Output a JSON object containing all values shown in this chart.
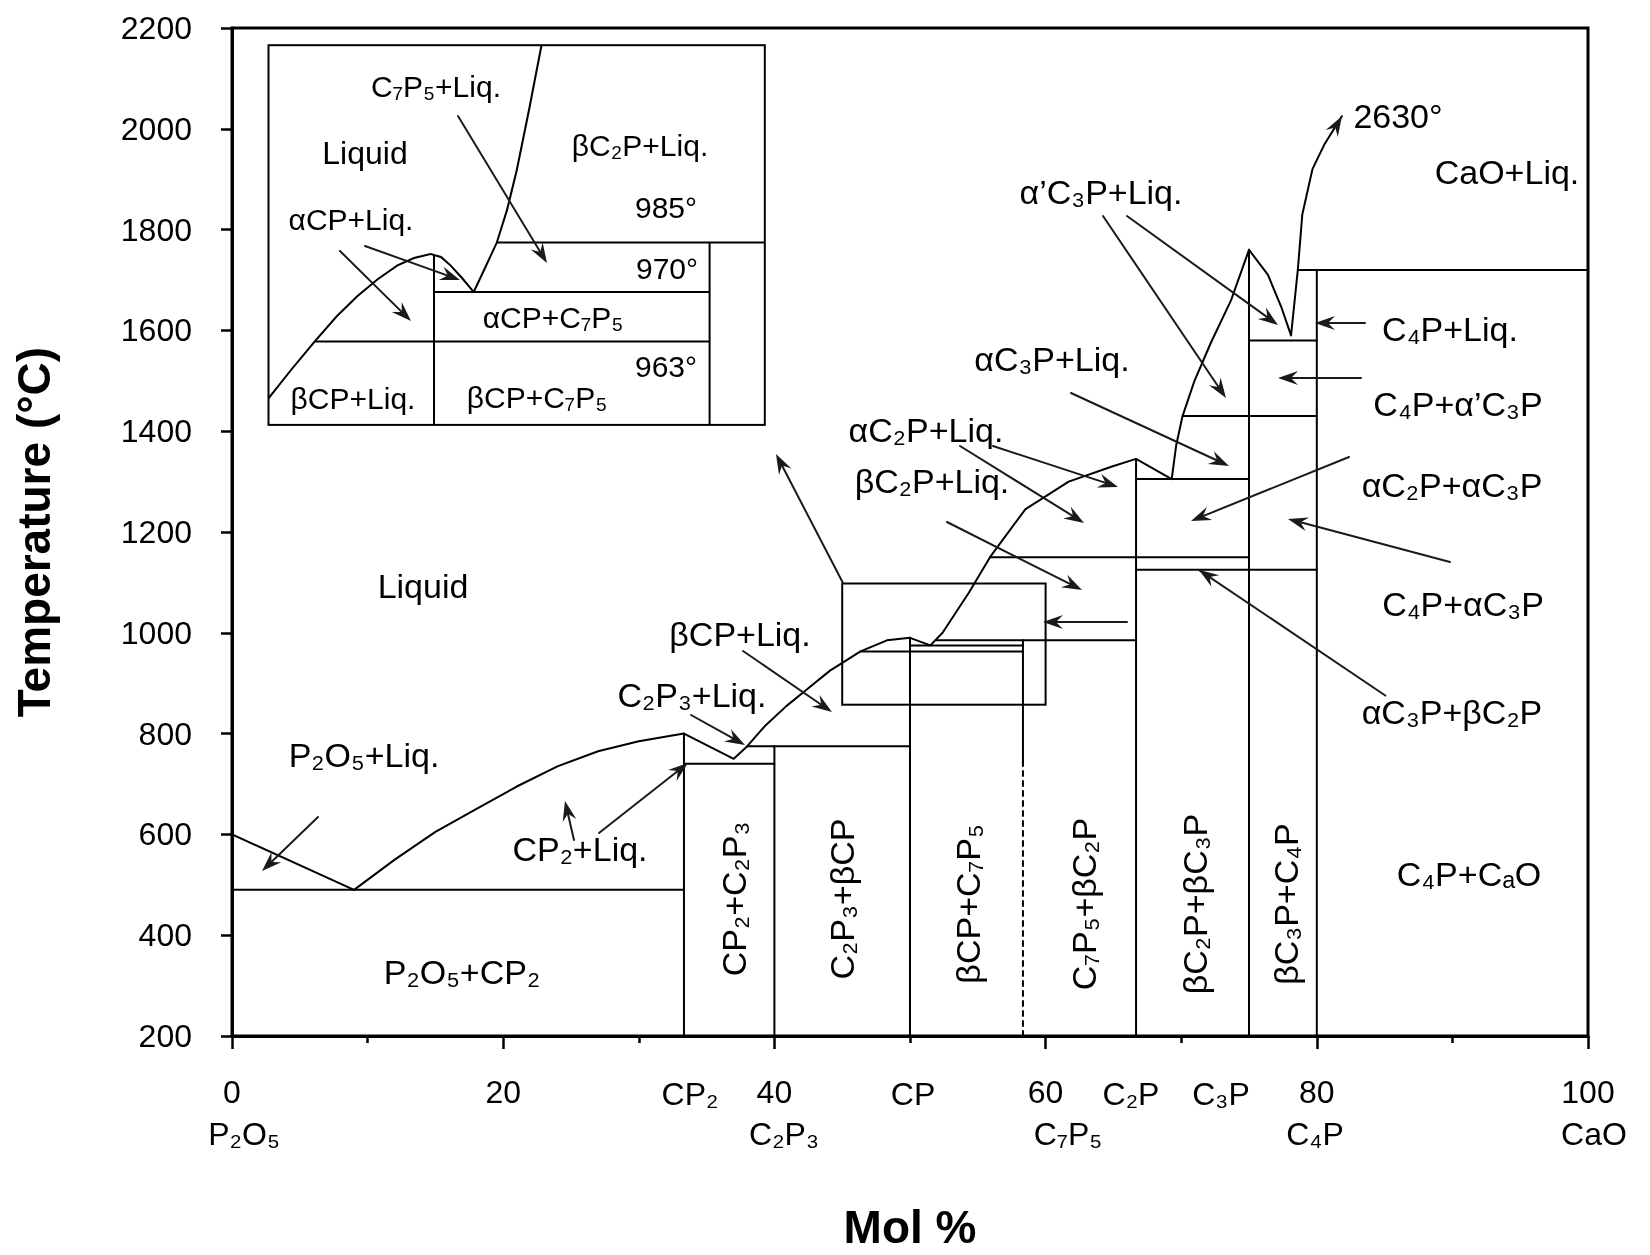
{
  "chart_data": [
    {
      "type": "line",
      "xlabel": "Mol %",
      "ylabel": "Temperature (°C)",
      "xlim": [
        0,
        100
      ],
      "xticks": [
        0,
        {
          "value": 10,
          "label": null
        },
        20,
        {
          "value": 30,
          "label": null
        },
        40,
        {
          "value": 50,
          "label": null
        },
        60,
        {
          "value": 70,
          "label": null
        },
        80,
        {
          "value": 90,
          "label": null
        },
        100
      ],
      "ylim": [
        200,
        2200
      ],
      "yticks": [
        200,
        400,
        600,
        800,
        1000,
        1200,
        1400,
        1600,
        1800,
        2000,
        2200
      ],
      "marker": "none",
      "line_style": "solid",
      "series": [
        {
          "color": "#000000",
          "x": [
            0,
            9,
            12,
            15,
            18,
            21,
            24,
            27,
            30,
            33.33,
            37,
            38,
            39.3,
            40.9,
            42.5,
            44.1,
            46.35,
            48.3,
            50,
            51.5,
            52.4,
            54.35,
            55.9,
            58.5,
            61.7,
            64.9,
            66.67,
            69.3,
            69.63,
            70.1,
            70.98,
            72.18,
            73.68,
            75,
            76.4,
            77.4,
            78.1,
            78.6,
            78.93,
            79.68,
            80.58,
            81.85
          ],
          "values": [
            600,
            490,
            550,
            605,
            650,
            695,
            735,
            765,
            785,
            800,
            750,
            775,
            815,
            855,
            890,
            925,
            963,
            985,
            990,
            975,
            1000,
            1080,
            1150,
            1245,
            1300,
            1330,
            1345,
            1305,
            1372,
            1430,
            1500,
            1575,
            1660,
            1760,
            1710,
            1645,
            1590,
            1720,
            1830,
            1920,
            1970,
            2025
          ]
        },
        {
          "color": "#000000",
          "x": [
            78.6,
            100
          ],
          "values": [
            1720,
            1720
          ]
        },
        {
          "color": "#000000",
          "x": [
            0,
            33.33
          ],
          "values": [
            490,
            490
          ]
        },
        {
          "color": "#000000",
          "x": [
            33.33,
            33.33
          ],
          "values": [
            200,
            800
          ]
        },
        {
          "color": "#000000",
          "x": [
            33.33,
            40
          ],
          "values": [
            740,
            740
          ]
        },
        {
          "color": "#000000",
          "x": [
            38,
            50
          ],
          "values": [
            775,
            775
          ]
        },
        {
          "color": "#000000",
          "x": [
            40,
            40
          ],
          "values": [
            200,
            775
          ]
        },
        {
          "color": "#000000",
          "x": [
            50,
            50
          ],
          "values": [
            200,
            990
          ]
        },
        {
          "color": "#000000",
          "x": [
            50,
            58.33
          ],
          "values": [
            975,
            975
          ]
        },
        {
          "color": "#000000",
          "x": [
            46.35,
            58.33
          ],
          "values": [
            963,
            963
          ]
        },
        {
          "color": "#000000",
          "x": [
            51.9,
            66.67
          ],
          "values": [
            985,
            985
          ]
        },
        {
          "color": "#000000",
          "x": [
            58.33,
            58.33
          ],
          "values": [
            745,
            985
          ]
        },
        {
          "color": "#000000",
          "x": [
            58.33,
            58.33
          ],
          "values": [
            200,
            745
          ],
          "line_style": "dashed"
        },
        {
          "color": "#000000",
          "x": [
            55.9,
            75
          ],
          "values": [
            1150,
            1150
          ]
        },
        {
          "color": "#000000",
          "x": [
            66.67,
            66.67
          ],
          "values": [
            200,
            1345
          ]
        },
        {
          "color": "#000000",
          "x": [
            66.67,
            75
          ],
          "values": [
            1305,
            1305
          ]
        },
        {
          "color": "#000000",
          "x": [
            70.1,
            80
          ],
          "values": [
            1430,
            1430
          ]
        },
        {
          "color": "#000000",
          "x": [
            66.67,
            80
          ],
          "values": [
            1125,
            1125
          ]
        },
        {
          "color": "#000000",
          "x": [
            75,
            75
          ],
          "values": [
            200,
            1760
          ]
        },
        {
          "color": "#000000",
          "x": [
            75,
            80
          ],
          "values": [
            1580,
            1580
          ]
        },
        {
          "color": "#000000",
          "x": [
            80,
            80
          ],
          "values": [
            200,
            1720
          ]
        }
      ],
      "annotations": [
        {
          "text": "2630°",
          "x": 81.85,
          "y": 2025
        },
        "CaO+Liq.",
        "α’C₃P+Liq.",
        "C₄P+Liq.",
        "αC₃P+Liq.",
        "C₄P+α’C₃P",
        "αC₂P+Liq.",
        "αC₂P+αC₃P",
        "βC₂P+Liq.",
        "Liquid",
        "C₄P+αC₃P",
        "βCP+Liq.",
        "C₂P₃+Liq.",
        {
          "text": "αC₃P+βC₂P",
          "x": 71.3,
          "y": 1125
        },
        "P₂O₅+Liq.",
        "CP₂+Liq.",
        "C₄P+CₐO",
        "P₂O₅+CP₂",
        "CP₂+C₂P₃",
        "C₂P₃+βCP",
        "βCP+C₇P₅",
        "C₇P₅+βC₂P",
        "βC₂P+βC₃P",
        "βC₃P+C₄P",
        "P₂O₅",
        "CP₂",
        "C₂P₃",
        "CP",
        "C₇P₅",
        "C₂P",
        "C₃P",
        "C₄P",
        "CaO"
      ]
    },
    {
      "type": "other",
      "annotations": [
        "C₇P₅+Liq.",
        "Liquid",
        "βC₂P+Liq.",
        "985°",
        "αCP+Liq.",
        "970°",
        "αCP+C₇P₅",
        "963°",
        "βCP+Liq.",
        "βCP+C₇P₅"
      ]
    }
  ]
}
